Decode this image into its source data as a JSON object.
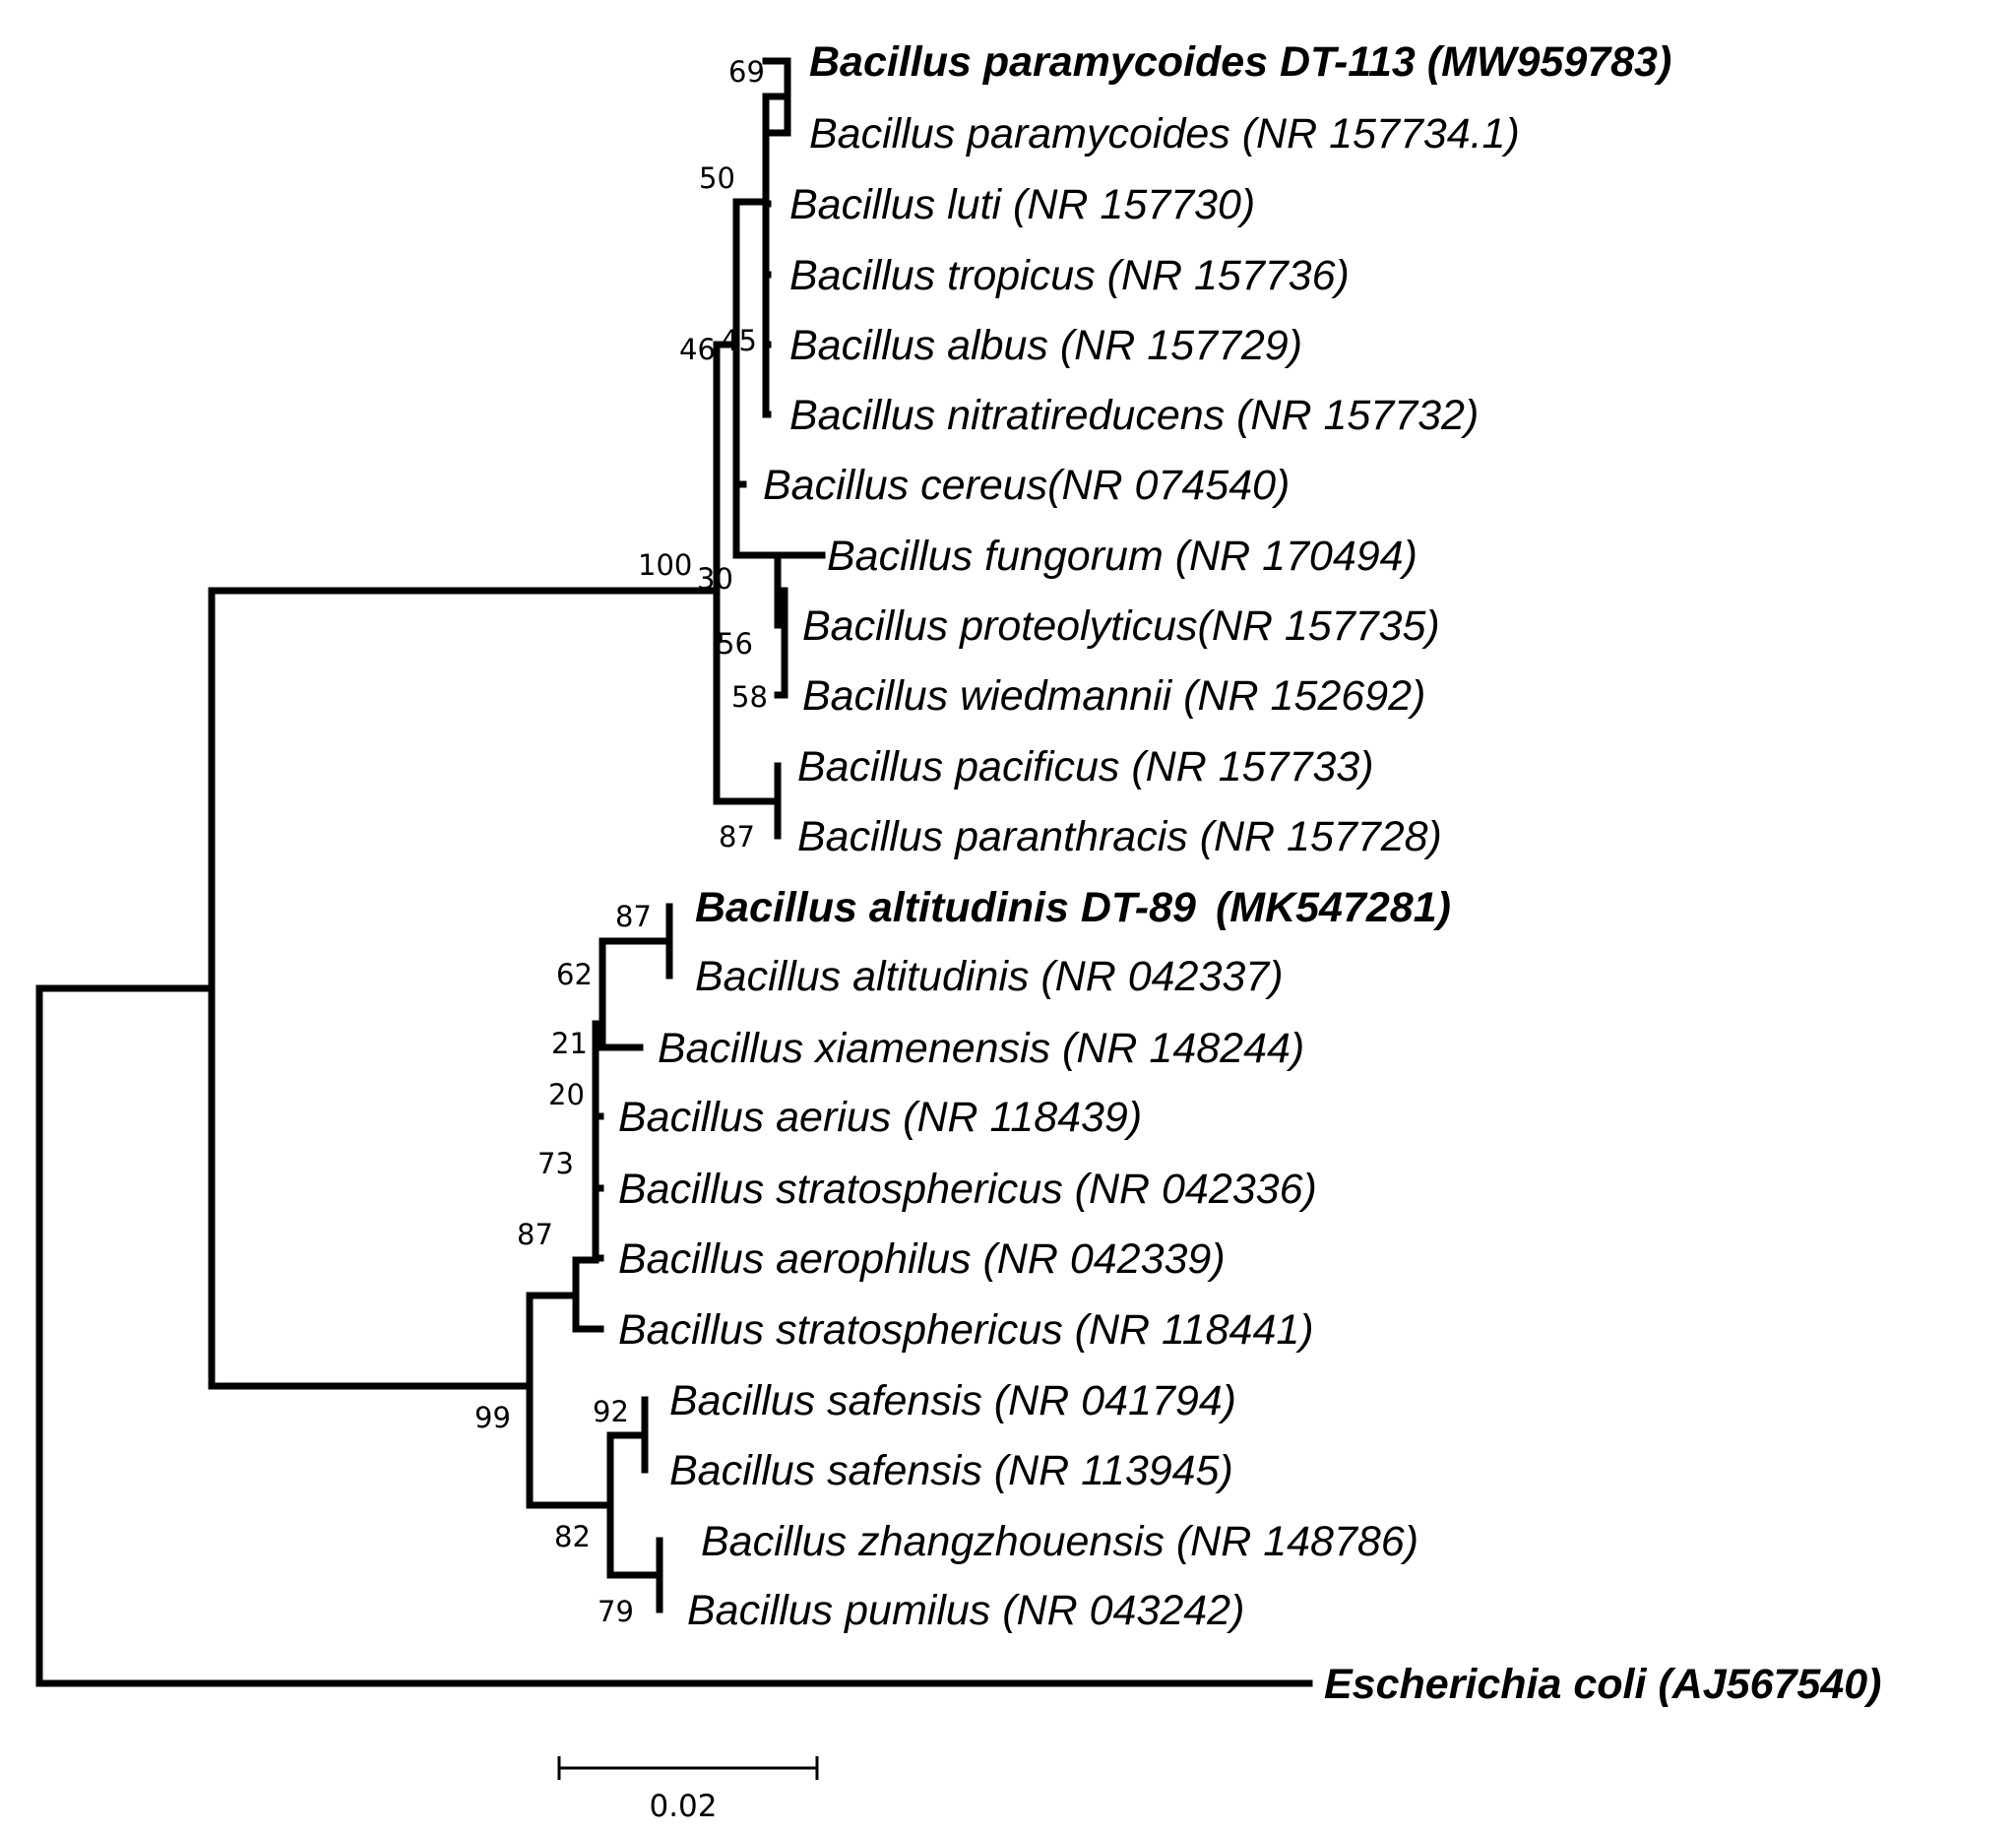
{
  "tree": {
    "colors": {
      "highlight_blue": "#1a1aff",
      "outgroup_red": "#e8121a",
      "default": "#000000"
    },
    "leaves": [
      {
        "id": "pmyc113",
        "label": "Bacillus paramycoides DT-113 (MW959783)",
        "style": "blue"
      },
      {
        "id": "pmyc",
        "label": "Bacillus paramycoides (NR 157734.1)"
      },
      {
        "id": "luti",
        "label": "Bacillus luti (NR 157730)"
      },
      {
        "id": "trop",
        "label": "Bacillus tropicus (NR 157736)"
      },
      {
        "id": "albus",
        "label": "Bacillus albus (NR 157729)"
      },
      {
        "id": "nitr",
        "label": "Bacillus nitratireducens (NR 157732)"
      },
      {
        "id": "cereus",
        "label": "Bacillus cereus(NR 074540)"
      },
      {
        "id": "fung",
        "label": "Bacillus fungorum (NR 170494)"
      },
      {
        "id": "prot",
        "label": "Bacillus proteolyticus(NR 157735)"
      },
      {
        "id": "wied",
        "label": "Bacillus wiedmannii (NR 152692)"
      },
      {
        "id": "paci",
        "label": "Bacillus pacificus (NR 157733)"
      },
      {
        "id": "panth",
        "label": "Bacillus paranthracis (NR 157728)"
      },
      {
        "id": "alt89",
        "label": "Bacillus altitudinis DT-89",
        "label_suffix": "(MK547281)",
        "style": "blue"
      },
      {
        "id": "alt",
        "label": "Bacillus altitudinis (NR 042337)"
      },
      {
        "id": "xiam",
        "label": "Bacillus xiamenensis (NR 148244)"
      },
      {
        "id": "aer",
        "label": "Bacillus aerius (NR 118439)"
      },
      {
        "id": "strat1",
        "label": "Bacillus stratosphericus (NR 042336)"
      },
      {
        "id": "aero",
        "label": "Bacillus aerophilus (NR 042339)"
      },
      {
        "id": "strat2",
        "label": "Bacillus stratosphericus (NR 118441)"
      },
      {
        "id": "saf1",
        "label": "Bacillus safensis (NR 041794)"
      },
      {
        "id": "saf2",
        "label": "Bacillus safensis (NR 113945)"
      },
      {
        "id": "zhang",
        "label": "Bacillus zhangzhouensis (NR 148786)"
      },
      {
        "id": "pum",
        "label": "Bacillus pumilus (NR 043242)"
      },
      {
        "id": "ecoli",
        "label": "Escherichia coli (AJ567540)",
        "style": "red"
      }
    ],
    "support_values": [
      "69",
      "50",
      "45",
      "46",
      "100",
      "30",
      "56",
      "58",
      "87",
      "87",
      "62",
      "21",
      "20",
      "73",
      "87",
      "99",
      "92",
      "82",
      "79"
    ],
    "scale_bar": {
      "label": "0.02"
    }
  }
}
